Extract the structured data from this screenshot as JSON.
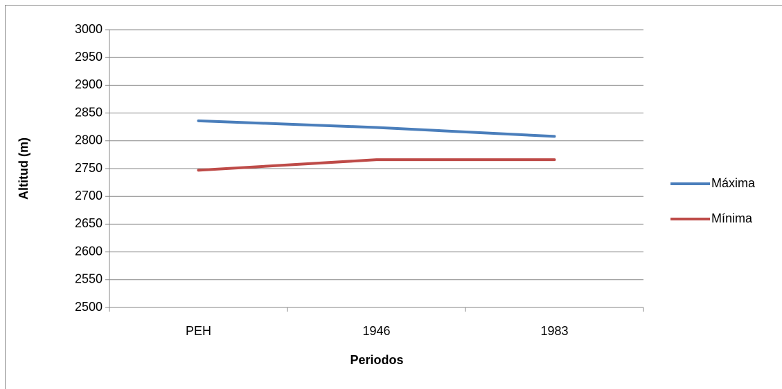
{
  "chart_data": {
    "type": "line",
    "x_label": "Periodos",
    "y_label": "Altitud (m)",
    "categories": [
      "PEH",
      "1946",
      "1983"
    ],
    "series": [
      {
        "name": "Máxima",
        "color": "#4a7ebb",
        "values": [
          2836,
          2824,
          2808
        ]
      },
      {
        "name": "Mínima",
        "color": "#be4b48",
        "values": [
          2747,
          2766,
          2766
        ]
      }
    ],
    "ylim": [
      2500,
      3000
    ],
    "yticks": [
      2500,
      2550,
      2600,
      2650,
      2700,
      2750,
      2800,
      2850,
      2900,
      2950,
      3000
    ],
    "grid": true,
    "legend": "right"
  }
}
